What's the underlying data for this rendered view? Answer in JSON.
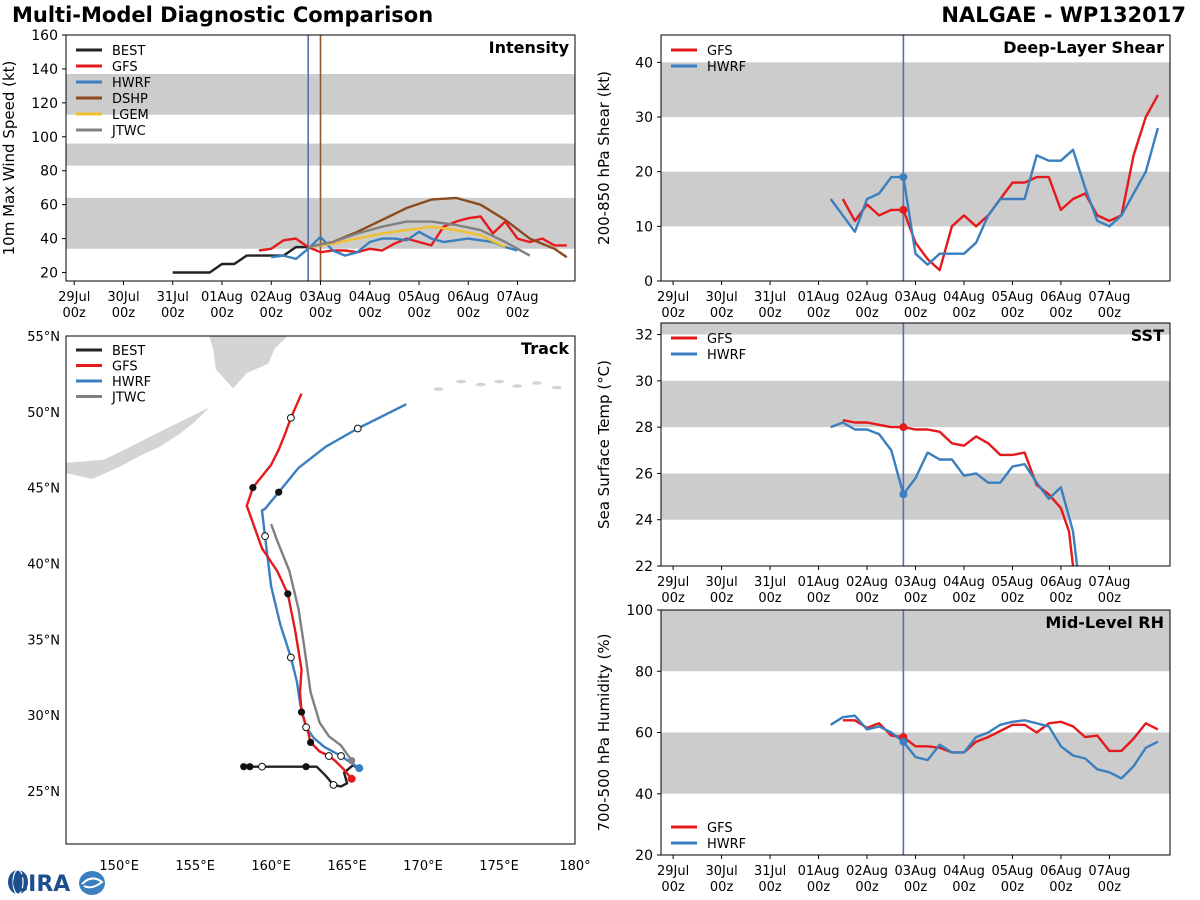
{
  "header": {
    "title": "Multi-Model Diagnostic Comparison",
    "storm": "NALGAE - WP132017"
  },
  "logo": {
    "text": "CIRA"
  },
  "colors": {
    "BEST": "#222222",
    "GFS": "#e41a1c",
    "HWRF": "#3a7fbf",
    "DSHP": "#8c4a1e",
    "LGEM": "#f0c030",
    "JTWC": "#808080",
    "band": "#cccccc",
    "vline": "#5870a8",
    "vline2": "#8c5a2a"
  },
  "time_ticks": [
    {
      "t": 0,
      "d": "29Jul",
      "h": "00z"
    },
    {
      "t": 24,
      "d": "30Jul",
      "h": "00z"
    },
    {
      "t": 48,
      "d": "31Jul",
      "h": "00z"
    },
    {
      "t": 72,
      "d": "01Aug",
      "h": "00z"
    },
    {
      "t": 96,
      "d": "02Aug",
      "h": "00z"
    },
    {
      "t": 120,
      "d": "03Aug",
      "h": "00z"
    },
    {
      "t": 144,
      "d": "04Aug",
      "h": "00z"
    },
    {
      "t": 168,
      "d": "05Aug",
      "h": "00z"
    },
    {
      "t": 192,
      "d": "06Aug",
      "h": "00z"
    },
    {
      "t": 216,
      "d": "07Aug",
      "h": "00z"
    }
  ],
  "chart_data": [
    {
      "id": "intensity",
      "type": "line",
      "title": "Intensity",
      "ylabel": "10m Max Wind Speed (kt)",
      "xlim": [
        -4,
        244
      ],
      "ylim": [
        15,
        160
      ],
      "yticks": [
        20,
        40,
        60,
        80,
        100,
        120,
        140,
        160
      ],
      "bands": [
        [
          34,
          64
        ],
        [
          83,
          96
        ],
        [
          113,
          137
        ]
      ],
      "vlines": [
        {
          "t": 114,
          "color": "vline"
        },
        {
          "t": 120,
          "color": "vline2"
        }
      ],
      "legend": [
        "BEST",
        "GFS",
        "HWRF",
        "DSHP",
        "LGEM",
        "JTWC"
      ],
      "series": [
        {
          "name": "BEST",
          "t": [
            48,
            54,
            60,
            66,
            72,
            78,
            84,
            90,
            96,
            102,
            108,
            114
          ],
          "values": [
            20,
            20,
            20,
            20,
            25,
            25,
            30,
            30,
            30,
            30,
            35,
            35
          ]
        },
        {
          "name": "GFS",
          "t": [
            90,
            96,
            102,
            108,
            114,
            120,
            126,
            132,
            138,
            144,
            150,
            156,
            162,
            168,
            174,
            180,
            186,
            192,
            198,
            204,
            210,
            216,
            222,
            228,
            234,
            240
          ],
          "values": [
            33,
            34,
            39,
            40,
            35,
            32,
            33,
            33,
            32,
            34,
            33,
            37,
            40,
            38,
            36,
            47,
            50,
            52,
            53,
            43,
            50,
            40,
            38,
            40,
            36,
            36
          ]
        },
        {
          "name": "HWRF",
          "t": [
            96,
            102,
            108,
            114,
            120,
            126,
            132,
            138,
            144,
            150,
            156,
            162,
            168,
            174,
            180,
            186,
            192,
            198,
            204,
            210,
            216
          ],
          "values": [
            29,
            30,
            28,
            34,
            41,
            33,
            30,
            32,
            38,
            40,
            40,
            39,
            44,
            40,
            38,
            39,
            40,
            39,
            38,
            35,
            33
          ]
        },
        {
          "name": "DSHP",
          "t": [
            114,
            126,
            138,
            150,
            162,
            174,
            186,
            198,
            210,
            222,
            234,
            240
          ],
          "values": [
            35,
            38,
            44,
            51,
            58,
            63,
            64,
            60,
            51,
            40,
            34,
            29
          ]
        },
        {
          "name": "LGEM",
          "t": [
            114,
            126,
            138,
            150,
            162,
            174,
            186,
            198,
            210
          ],
          "values": [
            35,
            37,
            40,
            43,
            45,
            47,
            45,
            42,
            35
          ]
        },
        {
          "name": "JTWC",
          "t": [
            114,
            126,
            138,
            150,
            162,
            174,
            186,
            198,
            210,
            222
          ],
          "values": [
            35,
            38,
            43,
            47,
            50,
            50,
            48,
            45,
            38,
            30
          ]
        }
      ]
    },
    {
      "id": "shear",
      "type": "line",
      "title": "Deep-Layer Shear",
      "ylabel": "200-850 hPa Shear (kt)",
      "xlim": [
        -6,
        246
      ],
      "ylim": [
        0,
        45
      ],
      "yticks": [
        0,
        10,
        20,
        30,
        40
      ],
      "bands": [
        [
          10,
          20
        ],
        [
          30,
          40
        ]
      ],
      "vlines": [
        {
          "t": 114,
          "color": "vline"
        }
      ],
      "legend": [
        "GFS",
        "HWRF"
      ],
      "markers": [
        {
          "name": "GFS",
          "t": 114,
          "value": 13
        },
        {
          "name": "HWRF",
          "t": 114,
          "value": 19
        }
      ],
      "series": [
        {
          "name": "GFS",
          "t": [
            84,
            90,
            96,
            102,
            108,
            114,
            120,
            126,
            132,
            138,
            144,
            150,
            156,
            162,
            168,
            174,
            180,
            186,
            192,
            198,
            204,
            210,
            216,
            222,
            228,
            234,
            240
          ],
          "values": [
            15,
            11,
            14,
            12,
            13,
            13,
            7,
            4,
            2,
            10,
            12,
            10,
            12,
            15,
            18,
            18,
            19,
            19,
            13,
            15,
            16,
            12,
            11,
            12,
            23,
            30,
            34
          ]
        },
        {
          "name": "HWRF",
          "t": [
            78,
            84,
            90,
            96,
            102,
            108,
            114,
            120,
            126,
            132,
            138,
            144,
            150,
            156,
            162,
            168,
            174,
            180,
            186,
            192,
            198,
            204,
            210,
            216,
            222,
            228,
            234,
            240
          ],
          "values": [
            15,
            12,
            9,
            15,
            16,
            19,
            19,
            5,
            3,
            5,
            5,
            5,
            7,
            12,
            15,
            15,
            15,
            23,
            22,
            22,
            24,
            17,
            11,
            10,
            12,
            16,
            20,
            28
          ]
        }
      ]
    },
    {
      "id": "sst",
      "type": "line",
      "title": "SST",
      "ylabel": "Sea Surface Temp (°C)",
      "xlim": [
        -6,
        246
      ],
      "ylim": [
        22,
        32.5
      ],
      "yticks": [
        22,
        24,
        26,
        28,
        30,
        32
      ],
      "bands": [
        [
          24,
          26
        ],
        [
          28,
          30
        ],
        [
          32,
          32.5
        ]
      ],
      "vlines": [
        {
          "t": 114,
          "color": "vline"
        }
      ],
      "legend": [
        "GFS",
        "HWRF"
      ],
      "markers": [
        {
          "name": "GFS",
          "t": 114,
          "value": 28
        },
        {
          "name": "HWRF",
          "t": 114,
          "value": 25.1
        }
      ],
      "series": [
        {
          "name": "GFS",
          "t": [
            84,
            90,
            96,
            102,
            108,
            114,
            120,
            126,
            132,
            138,
            144,
            150,
            156,
            162,
            168,
            174,
            180,
            186,
            192,
            196,
            198
          ],
          "values": [
            28.3,
            28.2,
            28.2,
            28.1,
            28.0,
            28.0,
            27.9,
            27.9,
            27.8,
            27.3,
            27.2,
            27.6,
            27.3,
            26.8,
            26.8,
            26.9,
            25.5,
            25.1,
            24.5,
            23.5,
            22.0
          ]
        },
        {
          "name": "HWRF",
          "t": [
            78,
            84,
            90,
            96,
            102,
            108,
            114,
            120,
            126,
            132,
            138,
            144,
            150,
            156,
            162,
            168,
            174,
            180,
            186,
            192,
            198,
            200
          ],
          "values": [
            28.0,
            28.2,
            27.9,
            27.9,
            27.7,
            27.0,
            25.1,
            25.8,
            26.9,
            26.6,
            26.6,
            25.9,
            26.0,
            25.6,
            25.6,
            26.3,
            26.4,
            25.6,
            24.9,
            25.4,
            23.5,
            22.0
          ]
        }
      ]
    },
    {
      "id": "rh",
      "type": "line",
      "title": "Mid-Level RH",
      "ylabel": "700-500 hPa Humidity (%)",
      "xlim": [
        -6,
        246
      ],
      "ylim": [
        20,
        100
      ],
      "yticks": [
        20,
        40,
        60,
        80,
        100
      ],
      "bands": [
        [
          40,
          60
        ],
        [
          80,
          100
        ]
      ],
      "vlines": [
        {
          "t": 114,
          "color": "vline"
        }
      ],
      "legend": [
        "GFS",
        "HWRF"
      ],
      "legend_pos": "bottom-left",
      "markers": [
        {
          "name": "GFS",
          "t": 114,
          "value": 58.5
        },
        {
          "name": "HWRF",
          "t": 114,
          "value": 57
        }
      ],
      "series": [
        {
          "name": "GFS",
          "t": [
            84,
            90,
            96,
            102,
            108,
            114,
            120,
            126,
            132,
            138,
            144,
            150,
            156,
            162,
            168,
            174,
            180,
            186,
            192,
            198,
            204,
            210,
            216,
            222,
            228,
            234,
            240
          ],
          "values": [
            64,
            64,
            61.5,
            63,
            59,
            58.5,
            55.5,
            55.5,
            55,
            53.5,
            53.5,
            57,
            58.5,
            60.5,
            62.5,
            62.5,
            60,
            63,
            63.5,
            62,
            58.5,
            59,
            54,
            54,
            58,
            63,
            61
          ]
        },
        {
          "name": "HWRF",
          "t": [
            78,
            84,
            90,
            96,
            102,
            108,
            114,
            120,
            126,
            132,
            138,
            144,
            150,
            156,
            162,
            168,
            174,
            180,
            186,
            192,
            198,
            204,
            210,
            216,
            222,
            228,
            234,
            240
          ],
          "values": [
            62.5,
            65,
            65.5,
            61,
            62,
            60,
            57,
            52,
            51,
            56,
            53.5,
            53.5,
            58.5,
            60,
            62.5,
            63.5,
            64,
            63,
            62,
            55.5,
            52.5,
            51.5,
            48,
            47,
            45,
            49,
            55,
            57
          ]
        }
      ]
    },
    {
      "id": "track",
      "type": "line",
      "title": "Track",
      "xlabel_ticks": [
        "150°E",
        "155°E",
        "160°E",
        "165°E",
        "170°E",
        "175°E",
        "180°"
      ],
      "xticks_values": [
        150,
        155,
        160,
        165,
        170,
        175,
        180
      ],
      "ylabel_ticks": [
        "25°N",
        "30°N",
        "35°N",
        "40°N",
        "45°N",
        "50°N",
        "55°N"
      ],
      "yticks_values": [
        25,
        30,
        35,
        40,
        45,
        50,
        55
      ],
      "xlim": [
        146.5,
        180
      ],
      "ylim": [
        21.5,
        55
      ],
      "legend": [
        "BEST",
        "GFS",
        "HWRF",
        "JTWC"
      ],
      "series": [
        {
          "name": "BEST",
          "lon": [
            158.2,
            158.6,
            159.4,
            160.5,
            161.8,
            162.3,
            163.0,
            163.6,
            164.1,
            164.6,
            165.0,
            164.8,
            165.4,
            165.7
          ],
          "lat": [
            26.6,
            26.6,
            26.6,
            26.6,
            26.6,
            26.6,
            26.6,
            26.0,
            25.4,
            25.3,
            25.5,
            26.2,
            26.7,
            26.5
          ],
          "filled": [
            0,
            1,
            5
          ],
          "open": [
            2,
            8
          ]
        },
        {
          "name": "GFS",
          "lon": [
            165.3,
            164.8,
            164.2,
            163.8,
            163.2,
            162.6,
            162.4,
            162.0,
            161.9,
            162.0,
            161.6,
            161.1,
            160.4,
            159.4,
            158.4,
            158.8,
            160.0,
            160.5,
            160.9,
            161.3,
            161.7,
            162.0
          ],
          "lat": [
            25.8,
            26.4,
            27.0,
            27.3,
            27.6,
            28.2,
            29.0,
            30.2,
            31.5,
            33.0,
            35.5,
            38.0,
            39.5,
            41.0,
            43.8,
            45.0,
            46.5,
            47.5,
            48.5,
            49.6,
            50.5,
            51.2
          ],
          "filled": [
            0,
            5,
            7,
            11,
            15
          ],
          "open": [
            3,
            19
          ]
        },
        {
          "name": "HWRF",
          "lon": [
            165.8,
            165.2,
            164.6,
            163.5,
            162.8,
            162.3,
            161.9,
            161.7,
            161.3,
            160.6,
            160.0,
            159.6,
            159.4,
            159.6,
            160.5,
            161.8,
            163.6,
            165.7,
            168.9
          ],
          "lat": [
            26.5,
            26.9,
            27.3,
            27.9,
            28.5,
            29.2,
            30.8,
            32.2,
            33.8,
            36.0,
            38.5,
            41.8,
            43.5,
            43.6,
            44.7,
            46.3,
            47.7,
            48.9,
            50.5
          ],
          "filled": [
            0,
            14
          ],
          "open": [
            2,
            5,
            8,
            11,
            17
          ]
        },
        {
          "name": "JTWC",
          "lon": [
            165.3,
            164.6,
            163.8,
            163.2,
            162.6,
            162.2,
            161.8,
            161.2,
            160.4,
            160.0
          ],
          "lat": [
            27.0,
            28.0,
            28.6,
            29.5,
            31.5,
            34.4,
            37.0,
            39.5,
            41.5,
            42.6
          ],
          "filled": [
            0
          ],
          "open": []
        }
      ]
    }
  ]
}
